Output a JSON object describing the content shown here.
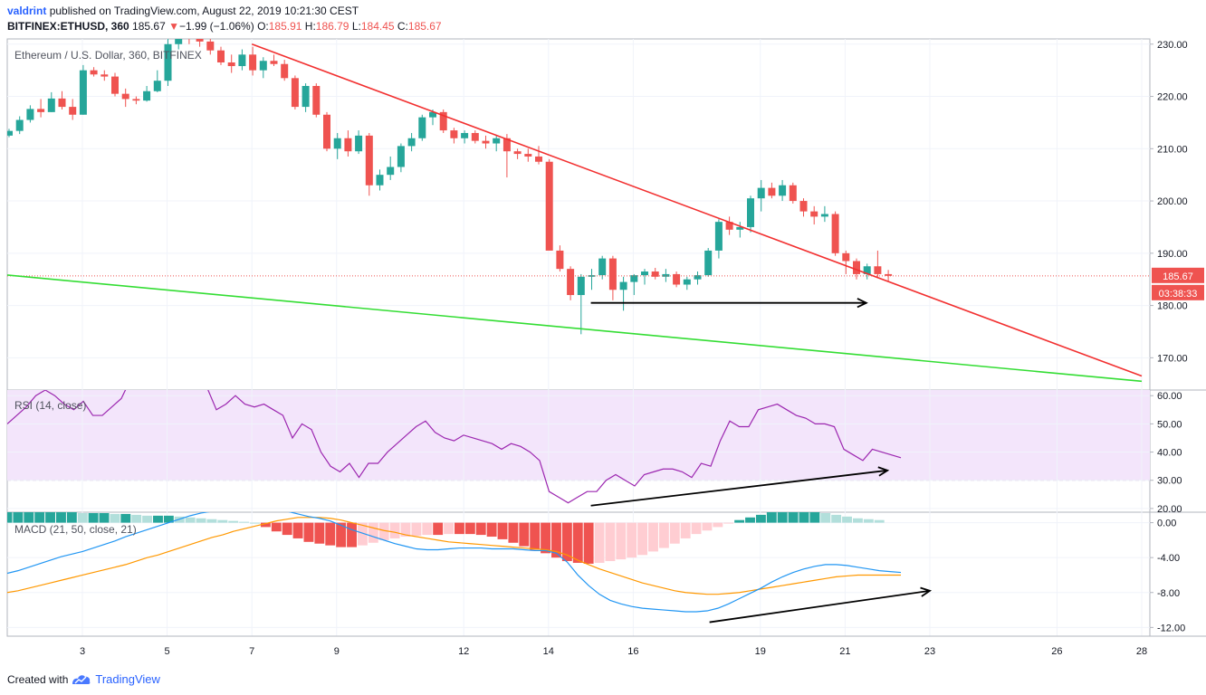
{
  "header": {
    "author": "valdrint",
    "published_text": "published on TradingView.com, August 22, 2019 10:21:30 CEST",
    "symbol": "BITFINEX:ETHUSD, 360",
    "last": "185.67",
    "change_arrow": "▼",
    "change": "−1.99 (−1.06%)",
    "o_label": "O:",
    "o": "185.91",
    "h_label": "H:",
    "h": "186.79",
    "l_label": "L:",
    "l": "184.45",
    "c_label": "C:",
    "c": "185.67"
  },
  "footer": {
    "created_with": "Created with",
    "brand": "TradingView"
  },
  "colors": {
    "up": "#26a69a",
    "down": "#ef5350",
    "trend_red": "#f23030",
    "trend_green": "#33dd33",
    "rsi": "#9c27b0",
    "macd": "#2196f3",
    "signal": "#ff9800"
  },
  "chart_data": [
    {
      "type": "candlestick",
      "title": "Ethereum / U.S. Dollar, 360, BITFINEX",
      "ylim": [
        164,
        231
      ],
      "y_ticks": [
        "170.00",
        "180.00",
        "190.00",
        "200.00",
        "210.00",
        "220.00",
        "230.00"
      ],
      "x_ticks": [
        "3",
        "5",
        "7",
        "9",
        "12",
        "14",
        "16",
        "19",
        "21",
        "23",
        "26",
        "28"
      ],
      "last_price_label": "185.67",
      "countdown_label": "03:38:33",
      "candles_ohlc": [
        [
          212.5,
          213.8,
          212.2,
          213.4
        ],
        [
          213.4,
          216.2,
          212.8,
          215.5
        ],
        [
          215.5,
          218.3,
          215.0,
          217.6
        ],
        [
          217.6,
          219.5,
          216.0,
          217.0
        ],
        [
          217.0,
          220.8,
          217.0,
          219.6
        ],
        [
          219.6,
          221.0,
          217.5,
          218.0
        ],
        [
          218.0,
          219.5,
          215.5,
          216.5
        ],
        [
          216.5,
          226.0,
          216.5,
          225.0
        ],
        [
          225.0,
          225.6,
          223.8,
          224.2
        ],
        [
          224.2,
          225.0,
          223.0,
          223.8
        ],
        [
          223.8,
          224.5,
          220.0,
          220.5
        ],
        [
          220.5,
          221.5,
          218.0,
          219.5
        ],
        [
          219.5,
          220.0,
          218.5,
          219.2
        ],
        [
          219.2,
          222.0,
          219.0,
          221.0
        ],
        [
          221.0,
          225.0,
          220.8,
          223.0
        ],
        [
          223.0,
          231.0,
          222.0,
          230.0
        ],
        [
          230.0,
          233.0,
          229.0,
          231.5
        ],
        [
          231.5,
          232.5,
          230.0,
          231.0
        ],
        [
          231.0,
          232.0,
          229.5,
          230.5
        ],
        [
          230.5,
          231.5,
          228.0,
          228.8
        ],
        [
          228.8,
          229.5,
          226.0,
          226.5
        ],
        [
          226.5,
          228.0,
          224.5,
          225.8
        ],
        [
          225.8,
          229.0,
          225.0,
          228.0
        ],
        [
          228.0,
          229.5,
          224.0,
          225.0
        ],
        [
          225.0,
          227.5,
          223.5,
          226.8
        ],
        [
          226.8,
          228.0,
          225.8,
          226.2
        ],
        [
          226.2,
          227.0,
          223.0,
          223.5
        ],
        [
          223.5,
          224.0,
          217.5,
          218.0
        ],
        [
          218.0,
          222.5,
          217.0,
          222.0
        ],
        [
          222.0,
          222.5,
          216.0,
          216.5
        ],
        [
          216.5,
          217.0,
          209.5,
          210.0
        ],
        [
          210.0,
          213.0,
          208.0,
          212.0
        ],
        [
          212.0,
          213.5,
          208.5,
          209.5
        ],
        [
          209.5,
          213.5,
          209.0,
          212.5
        ],
        [
          212.5,
          213.0,
          201.0,
          203.0
        ],
        [
          203.0,
          206.0,
          202.0,
          205.0
        ],
        [
          205.0,
          208.5,
          204.0,
          206.5
        ],
        [
          206.5,
          211.0,
          205.5,
          210.5
        ],
        [
          210.5,
          213.0,
          209.5,
          212.0
        ],
        [
          212.0,
          216.5,
          211.5,
          216.0
        ],
        [
          216.0,
          217.5,
          214.5,
          217.0
        ],
        [
          217.0,
          217.5,
          213.0,
          213.5
        ],
        [
          213.5,
          214.0,
          211.0,
          212.0
        ],
        [
          212.0,
          213.5,
          211.0,
          213.0
        ],
        [
          213.0,
          213.5,
          211.0,
          211.5
        ],
        [
          211.5,
          212.5,
          210.0,
          211.0
        ],
        [
          211.0,
          212.5,
          209.5,
          212.0
        ],
        [
          212.0,
          212.8,
          204.5,
          209.5
        ],
        [
          209.5,
          210.0,
          208.0,
          209.0
        ],
        [
          209.0,
          210.0,
          207.5,
          208.5
        ],
        [
          208.5,
          210.5,
          207.0,
          207.5
        ],
        [
          207.5,
          208.0,
          191.0,
          190.5
        ],
        [
          190.5,
          191.5,
          186.5,
          187.0
        ],
        [
          187.0,
          187.5,
          181.0,
          182.0
        ],
        [
          182.0,
          186.0,
          174.5,
          185.5
        ],
        [
          185.5,
          187.0,
          183.0,
          185.8
        ],
        [
          185.8,
          189.5,
          185.0,
          189.0
        ],
        [
          189.0,
          189.5,
          181.0,
          183.0
        ],
        [
          183.0,
          185.5,
          179.0,
          184.5
        ],
        [
          184.5,
          186.0,
          182.0,
          185.8
        ],
        [
          185.8,
          187.0,
          184.0,
          186.5
        ],
        [
          186.5,
          187.2,
          185.0,
          185.5
        ],
        [
          185.5,
          187.0,
          184.5,
          186.0
        ],
        [
          186.0,
          186.5,
          183.5,
          184.0
        ],
        [
          184.0,
          185.5,
          183.0,
          185.0
        ],
        [
          185.0,
          186.5,
          184.0,
          185.8
        ],
        [
          185.8,
          191.0,
          185.5,
          190.5
        ],
        [
          190.5,
          196.5,
          189.0,
          196.0
        ],
        [
          196.0,
          197.0,
          193.5,
          194.5
        ],
        [
          194.5,
          196.0,
          193.0,
          195.0
        ],
        [
          195.0,
          201.0,
          194.0,
          200.5
        ],
        [
          200.5,
          204.0,
          198.0,
          202.5
        ],
        [
          202.5,
          203.5,
          200.5,
          201.0
        ],
        [
          201.0,
          204.0,
          200.0,
          203.0
        ],
        [
          203.0,
          203.5,
          199.5,
          200.0
        ],
        [
          200.0,
          200.5,
          197.0,
          198.0
        ],
        [
          198.0,
          199.0,
          195.5,
          197.0
        ],
        [
          197.0,
          199.0,
          196.0,
          197.5
        ],
        [
          197.5,
          198.0,
          189.5,
          190.0
        ],
        [
          190.0,
          190.5,
          186.0,
          188.5
        ],
        [
          188.5,
          189.0,
          185.0,
          186.0
        ],
        [
          186.0,
          188.0,
          185.0,
          187.5
        ],
        [
          187.5,
          190.5,
          185.5,
          186.0
        ],
        [
          186.0,
          186.8,
          184.5,
          185.67
        ]
      ],
      "trendlines": [
        {
          "color": "red",
          "from": [
            7.0,
            230.0
          ],
          "to": [
            28.0,
            166.5
          ]
        },
        {
          "color": "green",
          "from": [
            1.0,
            186.0
          ],
          "to": [
            28.0,
            165.5
          ]
        }
      ],
      "arrows": [
        {
          "from": [
            15.0,
            180.5
          ],
          "to": [
            21.5,
            180.5
          ]
        }
      ]
    },
    {
      "type": "line",
      "title": "RSI (14, close)",
      "ylim": [
        19,
        62
      ],
      "y_ticks": [
        "20.00",
        "30.00",
        "40.00",
        "50.00",
        "60.00"
      ],
      "band": [
        30,
        70
      ],
      "values": [
        50,
        53,
        56,
        60,
        62,
        60,
        57,
        55,
        58,
        53,
        53,
        56,
        59,
        66,
        68,
        67,
        66,
        65,
        66,
        68,
        68,
        63,
        55,
        57,
        60,
        57,
        56,
        57,
        55,
        53,
        45,
        50,
        48,
        40,
        35,
        33,
        36,
        31,
        36,
        36,
        40,
        43,
        46,
        49,
        51,
        47,
        45,
        44,
        46,
        45,
        44,
        43,
        41,
        43,
        42,
        40,
        37,
        26,
        24,
        22,
        24,
        26,
        26,
        30,
        32,
        30,
        28,
        32,
        33,
        34,
        34,
        33,
        31,
        36,
        35,
        44,
        51,
        49,
        49,
        55,
        56,
        57,
        55,
        53,
        52,
        50,
        50,
        49,
        41,
        39,
        37,
        41,
        40,
        39,
        38
      ],
      "arrows": [
        {
          "from": [
            15.0,
            21.0
          ],
          "to": [
            22.0,
            33.5
          ]
        }
      ]
    },
    {
      "type": "macd",
      "title": "MACD (21, 50, close, 21)",
      "ylim": [
        -13,
        1.2
      ],
      "y_ticks": [
        "0.00",
        "-4.00",
        "-8.00",
        "-12.00"
      ],
      "macd": [
        -5.8,
        -5.5,
        -5.1,
        -4.7,
        -4.3,
        -3.9,
        -3.6,
        -3.3,
        -2.9,
        -2.5,
        -2.1,
        -1.6,
        -1.2,
        -0.8,
        -0.4,
        0.0,
        0.4,
        0.8,
        1.1,
        1.3,
        1.4,
        1.5,
        1.5,
        1.5,
        1.6,
        1.5,
        1.3,
        1.0,
        0.7,
        0.5,
        0.2,
        -0.3,
        -0.8,
        -1.2,
        -1.6,
        -2.0,
        -2.4,
        -2.7,
        -3.0,
        -3.1,
        -3.1,
        -3.0,
        -2.9,
        -2.9,
        -2.9,
        -3.0,
        -3.0,
        -3.0,
        -3.1,
        -3.2,
        -3.2,
        -3.5,
        -4.5,
        -6.0,
        -7.2,
        -8.2,
        -8.9,
        -9.3,
        -9.6,
        -9.8,
        -9.9,
        -10.0,
        -10.1,
        -10.2,
        -10.2,
        -10.1,
        -9.8,
        -9.3,
        -8.7,
        -8.1,
        -7.5,
        -6.8,
        -6.2,
        -5.7,
        -5.3,
        -5.0,
        -4.8,
        -4.8,
        -4.9,
        -5.1,
        -5.3,
        -5.5,
        -5.6,
        -5.7
      ],
      "signal": [
        -8.0,
        -7.8,
        -7.5,
        -7.2,
        -6.9,
        -6.6,
        -6.3,
        -6.0,
        -5.7,
        -5.4,
        -5.1,
        -4.8,
        -4.4,
        -4.0,
        -3.7,
        -3.3,
        -2.9,
        -2.5,
        -2.1,
        -1.7,
        -1.4,
        -1.0,
        -0.7,
        -0.4,
        -0.1,
        0.2,
        0.4,
        0.6,
        0.6,
        0.6,
        0.5,
        0.3,
        0.0,
        -0.3,
        -0.6,
        -0.9,
        -1.1,
        -1.4,
        -1.6,
        -1.8,
        -2.0,
        -2.2,
        -2.3,
        -2.4,
        -2.5,
        -2.6,
        -2.7,
        -2.8,
        -2.9,
        -3.0,
        -3.1,
        -3.3,
        -3.7,
        -4.3,
        -4.8,
        -5.3,
        -5.7,
        -6.1,
        -6.5,
        -6.9,
        -7.2,
        -7.5,
        -7.8,
        -8.0,
        -8.1,
        -8.2,
        -8.2,
        -8.1,
        -8.0,
        -7.8,
        -7.6,
        -7.4,
        -7.2,
        -7.0,
        -6.8,
        -6.6,
        -6.4,
        -6.2,
        -6.1,
        -6.0,
        -6.0,
        -6.0,
        -6.0,
        -6.0
      ],
      "histogram": [
        1.2,
        1.2,
        1.2,
        1.2,
        1.2,
        1.2,
        1.2,
        1.1,
        1.1,
        1.1,
        1.0,
        1.0,
        0.9,
        0.8,
        0.8,
        0.8,
        0.7,
        0.6,
        0.5,
        0.4,
        0.3,
        0.2,
        0.1,
        0.0,
        -0.5,
        -1.0,
        -1.4,
        -1.8,
        -2.2,
        -2.4,
        -2.6,
        -2.8,
        -2.8,
        -2.6,
        -2.3,
        -2.0,
        -1.8,
        -1.6,
        -1.5,
        -1.4,
        -1.4,
        -1.3,
        -1.3,
        -1.3,
        -1.4,
        -1.6,
        -1.9,
        -2.3,
        -2.7,
        -3.1,
        -3.5,
        -4.0,
        -4.4,
        -4.6,
        -4.7,
        -4.6,
        -4.4,
        -4.2,
        -4.0,
        -3.7,
        -3.3,
        -2.9,
        -2.4,
        -1.8,
        -1.3,
        -0.9,
        -0.5,
        -0.1,
        0.3,
        0.6,
        0.9,
        1.2,
        1.3,
        1.3,
        1.3,
        1.3,
        1.1,
        0.9,
        0.7,
        0.5,
        0.4,
        0.3
      ],
      "arrows": [
        {
          "from": [
            17.8,
            -11.4
          ],
          "to": [
            23.0,
            -7.8
          ]
        }
      ]
    }
  ]
}
